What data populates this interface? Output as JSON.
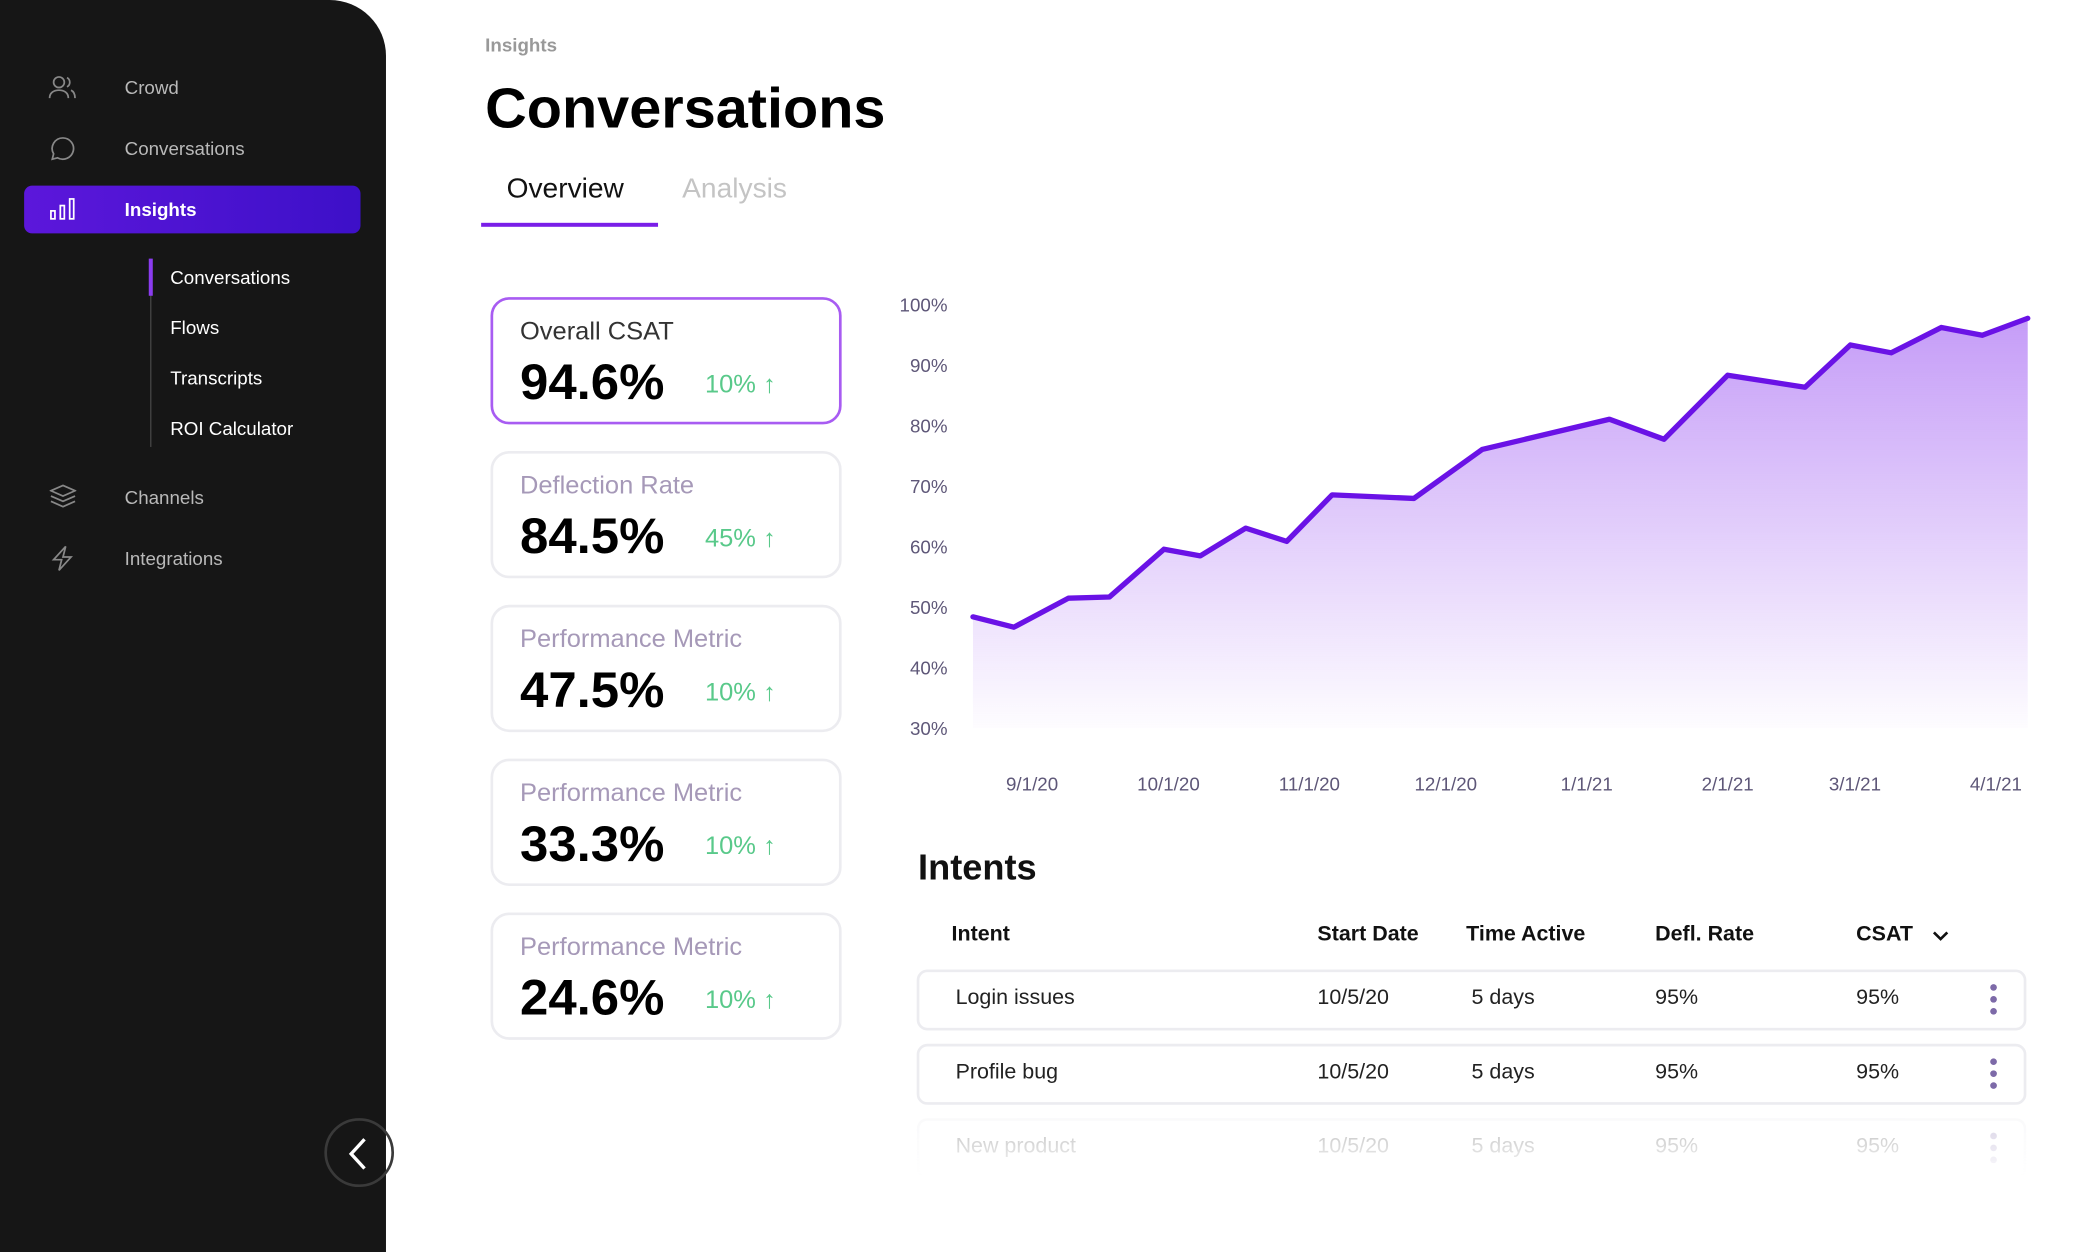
{
  "sidebar": {
    "nav": [
      "Crowd",
      "Conversations",
      "Insights"
    ],
    "subnav": [
      "Conversations",
      "Flows",
      "Transcripts",
      "ROI Calculator"
    ],
    "nav_bottom": [
      "Channels",
      "Integrations"
    ]
  },
  "header": {
    "breadcrumb": "Insights",
    "title": "Conversations",
    "tabs": [
      "Overview",
      "Analysis"
    ]
  },
  "metrics": [
    {
      "label": "Overall CSAT",
      "value": "94.6%",
      "change": "10% ↑"
    },
    {
      "label": "Deflection Rate",
      "value": "84.5%",
      "change": "45% ↑"
    },
    {
      "label": "Performance Metric",
      "value": "47.5%",
      "change": "10% ↑"
    },
    {
      "label": "Performance Metric",
      "value": "33.3%",
      "change": "10% ↑"
    },
    {
      "label": "Performance Metric",
      "value": "24.6%",
      "change": "10% ↑"
    }
  ],
  "chart_data": {
    "type": "line",
    "color": "#6a12e6",
    "x": [
      "8/19/20",
      "8/28/20",
      "9/9/20",
      "9/18/20",
      "9/30/20",
      "10/8/20",
      "10/18/20",
      "10/27/20",
      "11/6/20",
      "11/24/20",
      "12/9/20",
      "1/6/21",
      "1/18/21",
      "2/1/21",
      "2/18/21",
      "2/28/21",
      "3/9/21",
      "3/20/21",
      "3/29/21",
      "4/8/21"
    ],
    "values": [
      48.4,
      46.7,
      51.5,
      51.7,
      59.6,
      58.5,
      63.1,
      60.9,
      68.6,
      68,
      76.1,
      81.1,
      77.8,
      88.4,
      86.4,
      93.4,
      92.1,
      96.3,
      95,
      97.8
    ],
    "xlim": [
      "8/19/20",
      "4/8/21"
    ],
    "xticks": [
      "9/1/20",
      "10/1/20",
      "11/1/20",
      "12/1/20",
      "1/1/21",
      "2/1/21",
      "3/1/21",
      "4/1/21"
    ],
    "ylim": [
      30,
      100
    ],
    "yticks": [
      {
        "value": 30,
        "label": "30%"
      },
      {
        "value": 40,
        "label": "40%"
      },
      {
        "value": 50,
        "label": "50%"
      },
      {
        "value": 60,
        "label": "60%"
      },
      {
        "value": 70,
        "label": "70%"
      },
      {
        "value": 80,
        "label": "80%"
      },
      {
        "value": 90,
        "label": "90%"
      },
      {
        "value": 100,
        "label": "100%"
      }
    ]
  },
  "intents": {
    "title": "Intents",
    "columns": [
      "Intent",
      "Start Date",
      "Time Active",
      "Defl. Rate",
      "CSAT"
    ],
    "rows": [
      [
        "Login issues",
        "10/5/20",
        "5 days",
        "95%",
        "95%"
      ],
      [
        "Profile bug",
        "10/5/20",
        "5 days",
        "95%",
        "95%"
      ],
      [
        "New product",
        "10/5/20",
        "5 days",
        "95%",
        "95%"
      ]
    ]
  }
}
